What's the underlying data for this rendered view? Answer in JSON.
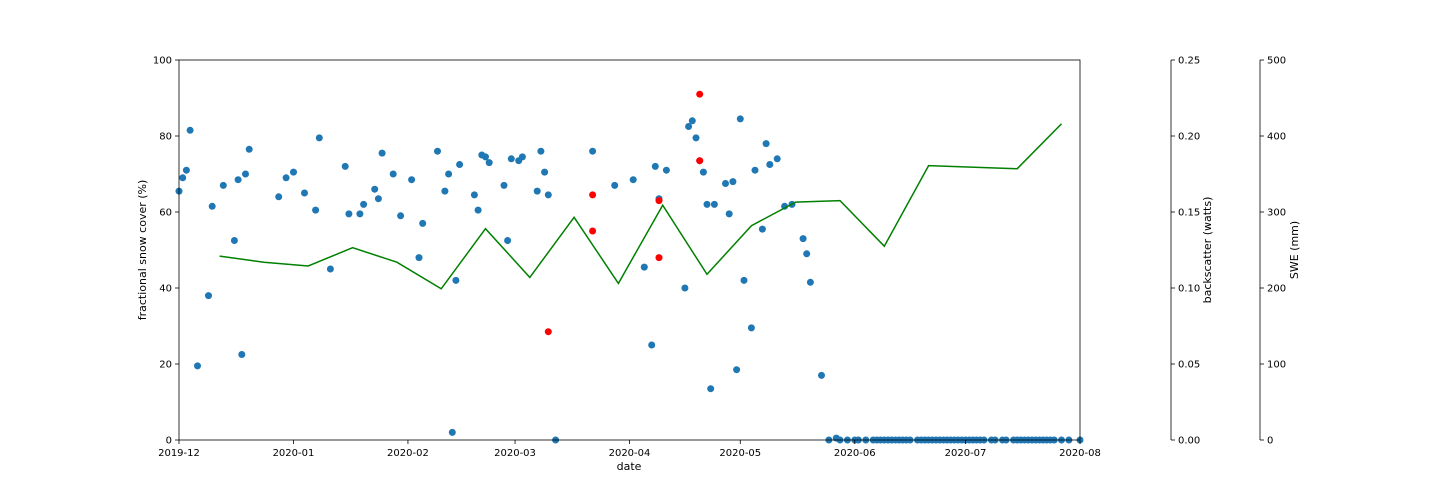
{
  "chart_data": {
    "type": "scatter",
    "xlabel": "date",
    "ylabel": "fractional snow cover (%)",
    "ylabel_right1": "backscatter (watts)",
    "ylabel_right2": "SWE (mm)",
    "xlim": [
      "2019-12-01",
      "2020-08-01"
    ],
    "ylim": [
      0,
      100
    ],
    "ylim_right1": [
      0,
      0.25
    ],
    "ylim_right2": [
      0,
      500
    ],
    "x_ticks": [
      "2019-12",
      "2020-01",
      "2020-02",
      "2020-03",
      "2020-04",
      "2020-05",
      "2020-06",
      "2020-07",
      "2020-08"
    ],
    "y_ticks": [
      "0",
      "20",
      "40",
      "60",
      "80",
      "100"
    ],
    "y_ticks_right1": [
      "0.00",
      "0.05",
      "0.10",
      "0.15",
      "0.20",
      "0.25"
    ],
    "y_ticks_right2": [
      "0",
      "100",
      "200",
      "300",
      "400",
      "500"
    ],
    "grid": false,
    "colors": {
      "scatter": "#1f77b4",
      "red_points": "#ff0000",
      "line": "#008000"
    },
    "series": [
      {
        "type": "scatter",
        "color": "#1f77b4",
        "points": [
          [
            "2019-12-01",
            65.5
          ],
          [
            "2019-12-02",
            69
          ],
          [
            "2019-12-03",
            71
          ],
          [
            "2019-12-04",
            81.5
          ],
          [
            "2019-12-06",
            19.5
          ],
          [
            "2019-12-09",
            38
          ],
          [
            "2019-12-10",
            61.5
          ],
          [
            "2019-12-13",
            67
          ],
          [
            "2019-12-16",
            52.5
          ],
          [
            "2019-12-17",
            68.5
          ],
          [
            "2019-12-18",
            22.5
          ],
          [
            "2019-12-19",
            70
          ],
          [
            "2019-12-20",
            76.5
          ],
          [
            "2019-12-28",
            64
          ],
          [
            "2019-12-30",
            69
          ],
          [
            "2020-01-01",
            70.5
          ],
          [
            "2020-01-04",
            65
          ],
          [
            "2020-01-07",
            60.5
          ],
          [
            "2020-01-08",
            79.5
          ],
          [
            "2020-01-11",
            45
          ],
          [
            "2020-01-15",
            72
          ],
          [
            "2020-01-16",
            59.5
          ],
          [
            "2020-01-19",
            59.5
          ],
          [
            "2020-01-20",
            62
          ],
          [
            "2020-01-23",
            66
          ],
          [
            "2020-01-24",
            63.5
          ],
          [
            "2020-01-25",
            75.5
          ],
          [
            "2020-01-28",
            70
          ],
          [
            "2020-01-30",
            59
          ],
          [
            "2020-02-02",
            68.5
          ],
          [
            "2020-02-04",
            48
          ],
          [
            "2020-02-05",
            57
          ],
          [
            "2020-02-09",
            76
          ],
          [
            "2020-02-11",
            65.5
          ],
          [
            "2020-02-12",
            70
          ],
          [
            "2020-02-13",
            2
          ],
          [
            "2020-02-14",
            42
          ],
          [
            "2020-02-15",
            72.5
          ],
          [
            "2020-02-19",
            64.5
          ],
          [
            "2020-02-20",
            60.5
          ],
          [
            "2020-02-21",
            75
          ],
          [
            "2020-02-22",
            74.5
          ],
          [
            "2020-02-23",
            73
          ],
          [
            "2020-02-27",
            67
          ],
          [
            "2020-02-28",
            52.5
          ],
          [
            "2020-02-29",
            74
          ],
          [
            "2020-03-02",
            73.5
          ],
          [
            "2020-03-03",
            74.5
          ],
          [
            "2020-03-07",
            65.5
          ],
          [
            "2020-03-08",
            76
          ],
          [
            "2020-03-09",
            70.5
          ],
          [
            "2020-03-10",
            64.5
          ],
          [
            "2020-03-12",
            0
          ],
          [
            "2020-03-22",
            76
          ],
          [
            "2020-03-28",
            67
          ],
          [
            "2020-04-02",
            68.5
          ],
          [
            "2020-04-05",
            45.5
          ],
          [
            "2020-04-07",
            25
          ],
          [
            "2020-04-08",
            72
          ],
          [
            "2020-04-09",
            63.5
          ],
          [
            "2020-04-11",
            71
          ],
          [
            "2020-04-16",
            40
          ],
          [
            "2020-04-17",
            82.5
          ],
          [
            "2020-04-18",
            84
          ],
          [
            "2020-04-19",
            79.5
          ],
          [
            "2020-04-20",
            73.5
          ],
          [
            "2020-04-21",
            70.5
          ],
          [
            "2020-04-22",
            62
          ],
          [
            "2020-04-23",
            13.5
          ],
          [
            "2020-04-24",
            62
          ],
          [
            "2020-04-27",
            67.5
          ],
          [
            "2020-04-28",
            59.5
          ],
          [
            "2020-04-29",
            68
          ],
          [
            "2020-04-30",
            18.5
          ],
          [
            "2020-05-01",
            84.5
          ],
          [
            "2020-05-02",
            42
          ],
          [
            "2020-05-04",
            29.5
          ],
          [
            "2020-05-05",
            71
          ],
          [
            "2020-05-07",
            55.5
          ],
          [
            "2020-05-08",
            78
          ],
          [
            "2020-05-09",
            72.5
          ],
          [
            "2020-05-11",
            74
          ],
          [
            "2020-05-13",
            61.5
          ],
          [
            "2020-05-15",
            62
          ],
          [
            "2020-05-18",
            53
          ],
          [
            "2020-05-19",
            49
          ],
          [
            "2020-05-20",
            41.5
          ],
          [
            "2020-05-23",
            17
          ],
          [
            "2020-05-25",
            0
          ],
          [
            "2020-05-27",
            0.5
          ],
          [
            "2020-05-28",
            0
          ],
          [
            "2020-05-30",
            0
          ],
          [
            "2020-06-01",
            0
          ],
          [
            "2020-06-02",
            0
          ],
          [
            "2020-06-04",
            0
          ],
          [
            "2020-06-06",
            0
          ],
          [
            "2020-06-07",
            0
          ],
          [
            "2020-06-08",
            0
          ],
          [
            "2020-06-09",
            0
          ],
          [
            "2020-06-10",
            0
          ],
          [
            "2020-06-11",
            0
          ],
          [
            "2020-06-12",
            0
          ],
          [
            "2020-06-13",
            0
          ],
          [
            "2020-06-14",
            0
          ],
          [
            "2020-06-15",
            0
          ],
          [
            "2020-06-16",
            0
          ],
          [
            "2020-06-18",
            0
          ],
          [
            "2020-06-19",
            0
          ],
          [
            "2020-06-20",
            0
          ],
          [
            "2020-06-21",
            0
          ],
          [
            "2020-06-22",
            0
          ],
          [
            "2020-06-23",
            0
          ],
          [
            "2020-06-24",
            0
          ],
          [
            "2020-06-25",
            0
          ],
          [
            "2020-06-26",
            0
          ],
          [
            "2020-06-27",
            0
          ],
          [
            "2020-06-28",
            0
          ],
          [
            "2020-06-29",
            0
          ],
          [
            "2020-06-30",
            0
          ],
          [
            "2020-07-01",
            0
          ],
          [
            "2020-07-02",
            0
          ],
          [
            "2020-07-03",
            0
          ],
          [
            "2020-07-04",
            0
          ],
          [
            "2020-07-05",
            0
          ],
          [
            "2020-07-06",
            0
          ],
          [
            "2020-07-08",
            0
          ],
          [
            "2020-07-09",
            0
          ],
          [
            "2020-07-11",
            0
          ],
          [
            "2020-07-12",
            0
          ],
          [
            "2020-07-14",
            0
          ],
          [
            "2020-07-15",
            0
          ],
          [
            "2020-07-16",
            0
          ],
          [
            "2020-07-17",
            0
          ],
          [
            "2020-07-18",
            0
          ],
          [
            "2020-07-19",
            0
          ],
          [
            "2020-07-20",
            0
          ],
          [
            "2020-07-21",
            0
          ],
          [
            "2020-07-22",
            0
          ],
          [
            "2020-07-23",
            0
          ],
          [
            "2020-07-24",
            0
          ],
          [
            "2020-07-25",
            0
          ],
          [
            "2020-07-27",
            0
          ],
          [
            "2020-07-29",
            0
          ],
          [
            "2020-08-01",
            0
          ]
        ]
      },
      {
        "type": "scatter",
        "color": "#ff0000",
        "points": [
          [
            "2020-03-10",
            28.5
          ],
          [
            "2020-03-22",
            64.5
          ],
          [
            "2020-03-22",
            55
          ],
          [
            "2020-04-09",
            63
          ],
          [
            "2020-04-09",
            48
          ],
          [
            "2020-04-20",
            91
          ],
          [
            "2020-04-20",
            73.5
          ]
        ]
      },
      {
        "type": "line",
        "color": "#008000",
        "axis": "SWE (mm)",
        "points": [
          [
            "2019-12-12",
            242
          ],
          [
            "2019-12-24",
            234
          ],
          [
            "2020-01-05",
            229
          ],
          [
            "2020-01-17",
            253
          ],
          [
            "2020-01-29",
            234
          ],
          [
            "2020-02-10",
            199
          ],
          [
            "2020-02-22",
            278
          ],
          [
            "2020-03-05",
            214
          ],
          [
            "2020-03-17",
            293
          ],
          [
            "2020-03-29",
            206
          ],
          [
            "2020-04-10",
            309
          ],
          [
            "2020-04-22",
            218
          ],
          [
            "2020-05-04",
            282
          ],
          [
            "2020-05-16",
            313
          ],
          [
            "2020-05-28",
            315
          ],
          [
            "2020-06-09",
            255
          ],
          [
            "2020-06-21",
            361
          ],
          [
            "2020-07-15",
            357
          ],
          [
            "2020-07-27",
            416
          ]
        ]
      }
    ]
  }
}
